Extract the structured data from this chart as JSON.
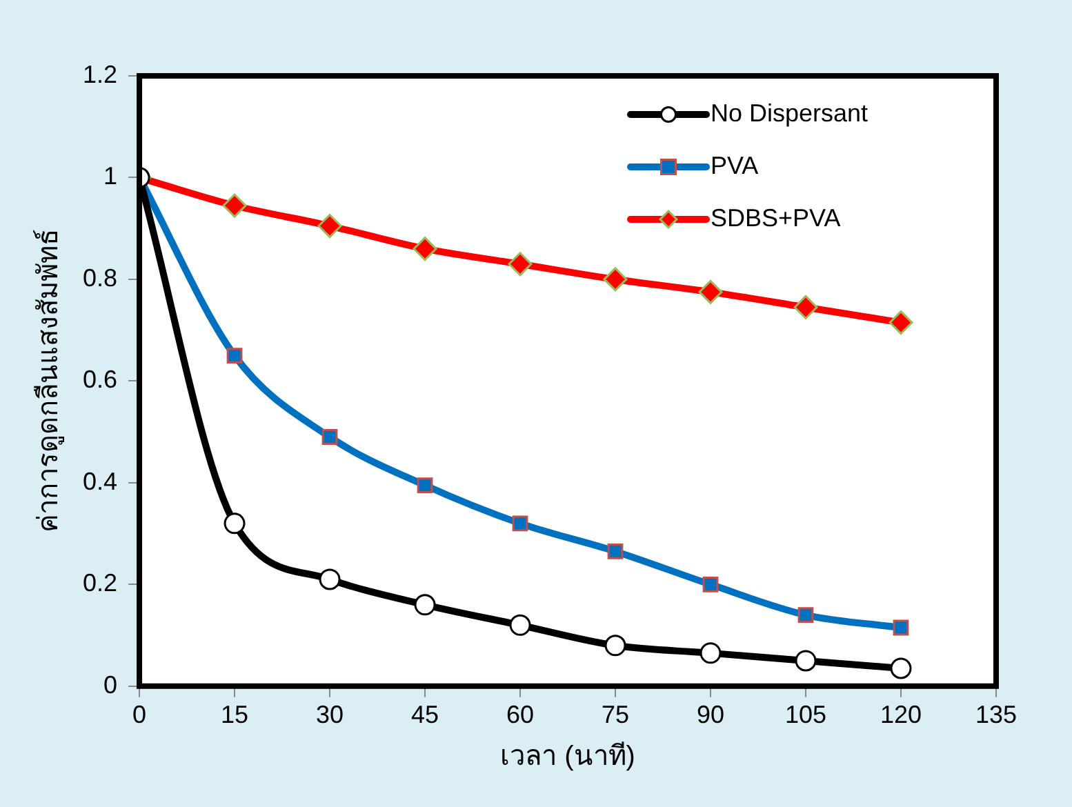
{
  "chart_data": {
    "type": "line",
    "xlabel": "เวลา (นาที)",
    "ylabel": "ค่าการดูดกลืนแสงสัมพัทธ์",
    "x": [
      0,
      15,
      30,
      45,
      60,
      75,
      90,
      105,
      120
    ],
    "xlim": [
      0,
      135
    ],
    "xticks": [
      0,
      15,
      30,
      45,
      60,
      75,
      90,
      105,
      120,
      135
    ],
    "ylim": [
      0,
      1.2
    ],
    "yticks": [
      0,
      0.2,
      0.4,
      0.6,
      0.8,
      1,
      1.2
    ],
    "grid": false,
    "legend": "top right",
    "series": [
      {
        "name": "No Dispersant",
        "color": "#000000",
        "marker": "circle",
        "values": [
          1,
          0.32,
          0.21,
          0.16,
          0.12,
          0.08,
          0.065,
          0.05,
          0.035
        ]
      },
      {
        "name": "PVA",
        "color": "#0070c0",
        "marker": "square",
        "values": [
          1,
          0.65,
          0.49,
          0.395,
          0.32,
          0.265,
          0.2,
          0.14,
          0.115
        ]
      },
      {
        "name": "SDBS+PVA",
        "color": "#ff0000",
        "marker": "diamond",
        "values": [
          1,
          0.945,
          0.905,
          0.86,
          0.83,
          0.8,
          0.775,
          0.745,
          0.715
        ]
      }
    ]
  }
}
